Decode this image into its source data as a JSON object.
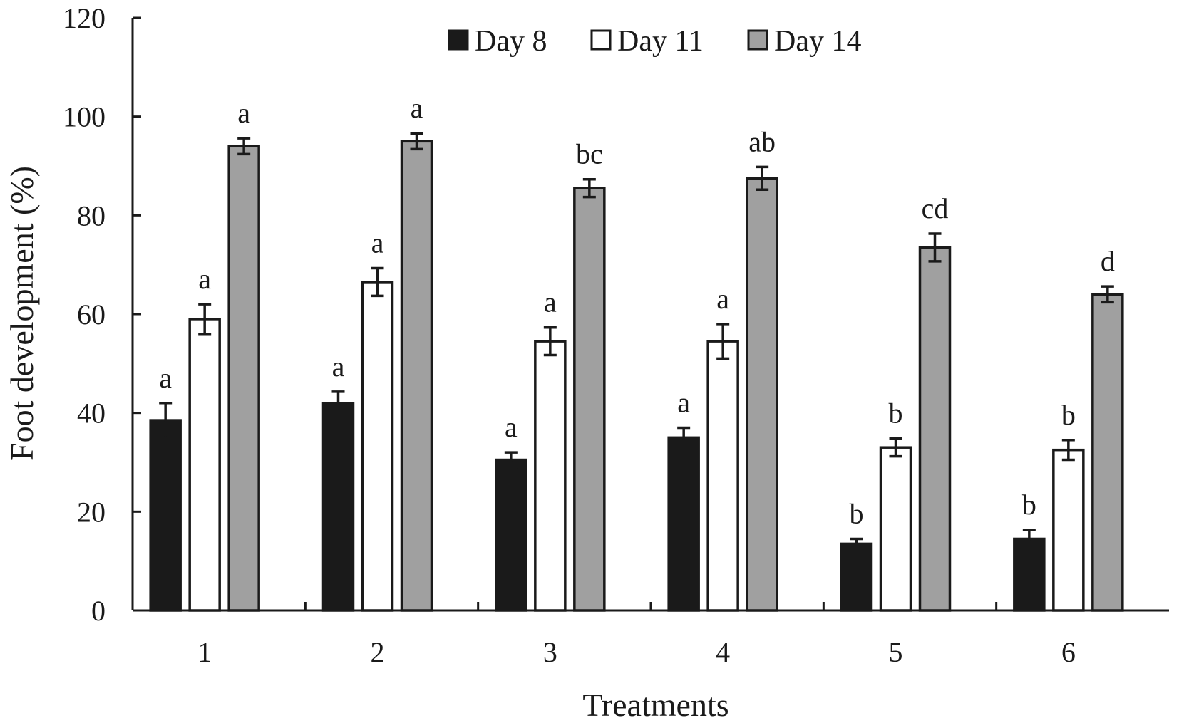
{
  "chart_data": {
    "type": "bar",
    "title": "",
    "xlabel": "Treatments",
    "ylabel": "Foot development (%)",
    "ylim": [
      0,
      120
    ],
    "yticks": [
      0,
      20,
      40,
      60,
      80,
      100,
      120
    ],
    "categories": [
      "1",
      "2",
      "3",
      "4",
      "5",
      "6"
    ],
    "legend_position": "top-center",
    "grid": false,
    "series": [
      {
        "name": "Day 8",
        "color": "#1a1a1a",
        "values": [
          38.5,
          42,
          30.5,
          35,
          13.5,
          14.5
        ],
        "errors": [
          3.5,
          2.3,
          1.5,
          2.0,
          1.0,
          1.8
        ],
        "labels": [
          "a",
          "a",
          "a",
          "a",
          "b",
          "b"
        ]
      },
      {
        "name": "Day 11",
        "color": "#ffffff",
        "values": [
          59,
          66.5,
          54.5,
          54.5,
          33,
          32.5
        ],
        "errors": [
          3.0,
          2.8,
          2.8,
          3.5,
          1.8,
          2.0
        ],
        "labels": [
          "a",
          "a",
          "a",
          "a",
          "b",
          "b"
        ]
      },
      {
        "name": "Day 14",
        "color": "#a0a0a0",
        "values": [
          94,
          95,
          85.5,
          87.5,
          73.5,
          64
        ],
        "errors": [
          1.6,
          1.6,
          1.8,
          2.3,
          2.8,
          1.6
        ],
        "labels": [
          "a",
          "a",
          "bc",
          "ab",
          "cd",
          "d"
        ]
      }
    ]
  }
}
